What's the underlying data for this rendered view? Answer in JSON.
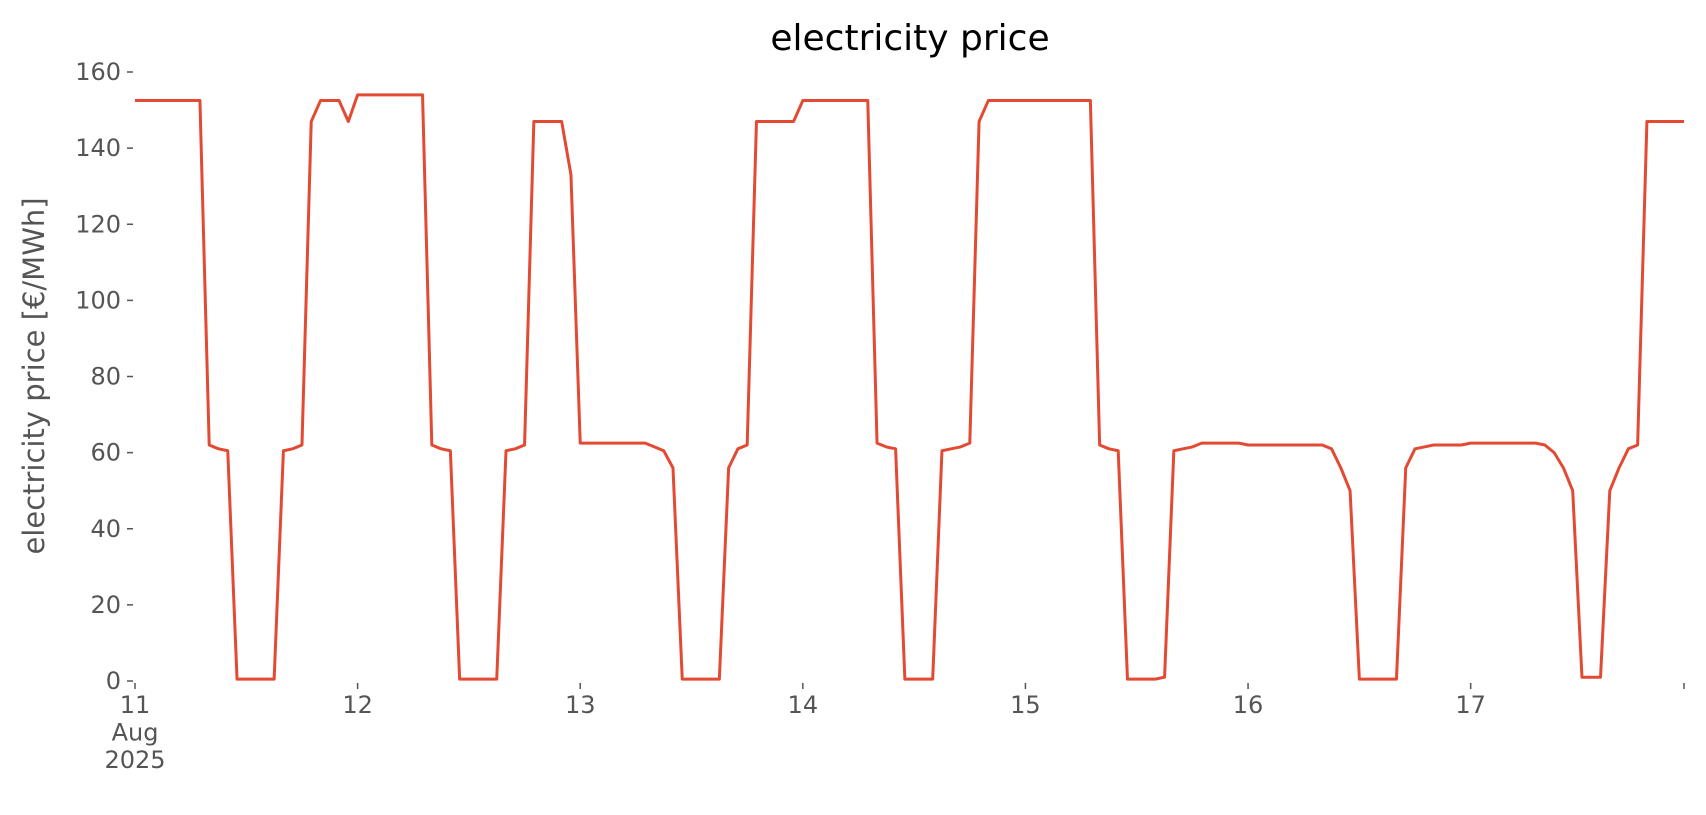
{
  "chart_data": {
    "type": "line",
    "title": "electricity price",
    "y_label": "electricity price [€/MWh]",
    "color": "#e24a33",
    "grid": false,
    "x": [
      "2025-08-11T00:00",
      "2025-08-11T01:00",
      "2025-08-11T02:00",
      "2025-08-11T03:00",
      "2025-08-11T04:00",
      "2025-08-11T05:00",
      "2025-08-11T06:00",
      "2025-08-11T07:00",
      "2025-08-11T08:00",
      "2025-08-11T09:00",
      "2025-08-11T10:00",
      "2025-08-11T11:00",
      "2025-08-11T12:00",
      "2025-08-11T13:00",
      "2025-08-11T14:00",
      "2025-08-11T15:00",
      "2025-08-11T16:00",
      "2025-08-11T17:00",
      "2025-08-11T18:00",
      "2025-08-11T19:00",
      "2025-08-11T20:00",
      "2025-08-11T21:00",
      "2025-08-11T22:00",
      "2025-08-11T23:00",
      "2025-08-12T00:00",
      "2025-08-12T01:00",
      "2025-08-12T02:00",
      "2025-08-12T03:00",
      "2025-08-12T04:00",
      "2025-08-12T05:00",
      "2025-08-12T06:00",
      "2025-08-12T07:00",
      "2025-08-12T08:00",
      "2025-08-12T09:00",
      "2025-08-12T10:00",
      "2025-08-12T11:00",
      "2025-08-12T12:00",
      "2025-08-12T13:00",
      "2025-08-12T14:00",
      "2025-08-12T15:00",
      "2025-08-12T16:00",
      "2025-08-12T17:00",
      "2025-08-12T18:00",
      "2025-08-12T19:00",
      "2025-08-12T20:00",
      "2025-08-12T21:00",
      "2025-08-12T22:00",
      "2025-08-12T23:00",
      "2025-08-13T00:00",
      "2025-08-13T01:00",
      "2025-08-13T02:00",
      "2025-08-13T03:00",
      "2025-08-13T04:00",
      "2025-08-13T05:00",
      "2025-08-13T06:00",
      "2025-08-13T07:00",
      "2025-08-13T08:00",
      "2025-08-13T09:00",
      "2025-08-13T10:00",
      "2025-08-13T11:00",
      "2025-08-13T12:00",
      "2025-08-13T13:00",
      "2025-08-13T14:00",
      "2025-08-13T15:00",
      "2025-08-13T16:00",
      "2025-08-13T17:00",
      "2025-08-13T18:00",
      "2025-08-13T19:00",
      "2025-08-13T20:00",
      "2025-08-13T21:00",
      "2025-08-13T22:00",
      "2025-08-13T23:00",
      "2025-08-14T00:00",
      "2025-08-14T01:00",
      "2025-08-14T02:00",
      "2025-08-14T03:00",
      "2025-08-14T04:00",
      "2025-08-14T05:00",
      "2025-08-14T06:00",
      "2025-08-14T07:00",
      "2025-08-14T08:00",
      "2025-08-14T09:00",
      "2025-08-14T10:00",
      "2025-08-14T11:00",
      "2025-08-14T12:00",
      "2025-08-14T13:00",
      "2025-08-14T14:00",
      "2025-08-14T15:00",
      "2025-08-14T16:00",
      "2025-08-14T17:00",
      "2025-08-14T18:00",
      "2025-08-14T19:00",
      "2025-08-14T20:00",
      "2025-08-14T21:00",
      "2025-08-14T22:00",
      "2025-08-14T23:00",
      "2025-08-15T00:00",
      "2025-08-15T01:00",
      "2025-08-15T02:00",
      "2025-08-15T03:00",
      "2025-08-15T04:00",
      "2025-08-15T05:00",
      "2025-08-15T06:00",
      "2025-08-15T07:00",
      "2025-08-15T08:00",
      "2025-08-15T09:00",
      "2025-08-15T10:00",
      "2025-08-15T11:00",
      "2025-08-15T12:00",
      "2025-08-15T13:00",
      "2025-08-15T14:00",
      "2025-08-15T15:00",
      "2025-08-15T16:00",
      "2025-08-15T17:00",
      "2025-08-15T18:00",
      "2025-08-15T19:00",
      "2025-08-15T20:00",
      "2025-08-15T21:00",
      "2025-08-15T22:00",
      "2025-08-15T23:00",
      "2025-08-16T00:00",
      "2025-08-16T01:00",
      "2025-08-16T02:00",
      "2025-08-16T03:00",
      "2025-08-16T04:00",
      "2025-08-16T05:00",
      "2025-08-16T06:00",
      "2025-08-16T07:00",
      "2025-08-16T08:00",
      "2025-08-16T09:00",
      "2025-08-16T10:00",
      "2025-08-16T11:00",
      "2025-08-16T12:00",
      "2025-08-16T13:00",
      "2025-08-16T14:00",
      "2025-08-16T15:00",
      "2025-08-16T16:00",
      "2025-08-16T17:00",
      "2025-08-16T18:00",
      "2025-08-16T19:00",
      "2025-08-16T20:00",
      "2025-08-16T21:00",
      "2025-08-16T22:00",
      "2025-08-16T23:00",
      "2025-08-17T00:00",
      "2025-08-17T01:00",
      "2025-08-17T02:00",
      "2025-08-17T03:00",
      "2025-08-17T04:00",
      "2025-08-17T05:00",
      "2025-08-17T06:00",
      "2025-08-17T07:00",
      "2025-08-17T08:00",
      "2025-08-17T09:00",
      "2025-08-17T10:00",
      "2025-08-17T11:00",
      "2025-08-17T12:00",
      "2025-08-17T13:00",
      "2025-08-17T14:00",
      "2025-08-17T15:00",
      "2025-08-17T16:00",
      "2025-08-17T17:00",
      "2025-08-17T18:00",
      "2025-08-17T19:00",
      "2025-08-17T20:00",
      "2025-08-17T21:00",
      "2025-08-17T22:00",
      "2025-08-17T23:00"
    ],
    "values": [
      152.5,
      152.5,
      152.5,
      152.5,
      152.5,
      152.5,
      152.5,
      152.5,
      62,
      61,
      60.5,
      0.5,
      0.5,
      0.5,
      0.5,
      0.5,
      60.5,
      61,
      62,
      147,
      152.5,
      152.5,
      152.5,
      147,
      154,
      154,
      154,
      154,
      154,
      154,
      154,
      154,
      62,
      61,
      60.5,
      0.5,
      0.5,
      0.5,
      0.5,
      0.5,
      60.5,
      61,
      62,
      147,
      147,
      147,
      147,
      133,
      62.5,
      62.5,
      62.5,
      62.5,
      62.5,
      62.5,
      62.5,
      62.5,
      61.5,
      60.5,
      56,
      0.5,
      0.5,
      0.5,
      0.5,
      0.5,
      56,
      61,
      62,
      147,
      147,
      147,
      147,
      147,
      152.5,
      152.5,
      152.5,
      152.5,
      152.5,
      152.5,
      152.5,
      152.5,
      62.5,
      61.5,
      61,
      0.5,
      0.5,
      0.5,
      0.5,
      60.5,
      61,
      61.5,
      62.5,
      147,
      152.5,
      152.5,
      152.5,
      152.5,
      152.5,
      152.5,
      152.5,
      152.5,
      152.5,
      152.5,
      152.5,
      152.5,
      62,
      61,
      60.5,
      0.5,
      0.5,
      0.5,
      0.5,
      1,
      60.5,
      61,
      61.5,
      62.5,
      62.5,
      62.5,
      62.5,
      62.5,
      62,
      62,
      62,
      62,
      62,
      62,
      62,
      62,
      62,
      61,
      56,
      50,
      0.5,
      0.5,
      0.5,
      0.5,
      0.5,
      56,
      61,
      61.5,
      62,
      62,
      62,
      62,
      62.5,
      62.5,
      62.5,
      62.5,
      62.5,
      62.5,
      62.5,
      62.5,
      62,
      60,
      56,
      50,
      1,
      1,
      1,
      50,
      56,
      61,
      62,
      147,
      147,
      147,
      147,
      147
    ],
    "xlim": [
      "2025-08-11T00:00",
      "2025-08-17T23:00"
    ],
    "xticks": [
      {
        "value": "2025-08-11T00:00",
        "label": "11\nAug\n2025"
      },
      {
        "value": "2025-08-12T00:00",
        "label": "12"
      },
      {
        "value": "2025-08-13T00:00",
        "label": "13"
      },
      {
        "value": "2025-08-14T00:00",
        "label": "14"
      },
      {
        "value": "2025-08-15T00:00",
        "label": "15"
      },
      {
        "value": "2025-08-16T00:00",
        "label": "16"
      },
      {
        "value": "2025-08-17T00:00",
        "label": "17"
      }
    ],
    "ylim": [
      0,
      160
    ],
    "yticks": [
      0,
      20,
      40,
      60,
      80,
      100,
      120,
      140,
      160
    ]
  }
}
